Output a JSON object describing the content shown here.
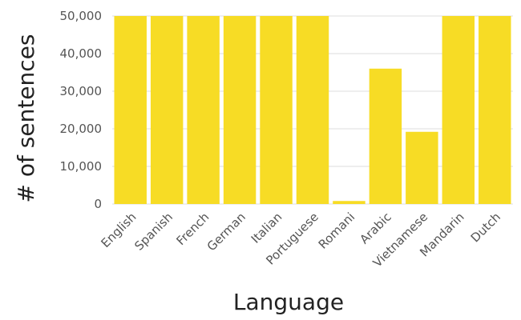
{
  "chart_data": {
    "type": "bar",
    "xlabel": "Language",
    "ylabel": "# of sentences",
    "categories": [
      "English",
      "Spanish",
      "French",
      "German",
      "Italian",
      "Portuguese",
      "Romani",
      "Arabic",
      "Vietnamese",
      "Mandarin",
      "Dutch"
    ],
    "values": [
      50000,
      50000,
      50000,
      50000,
      50000,
      50000,
      800,
      36000,
      19200,
      50000,
      50000
    ],
    "ylim": [
      0,
      50000
    ],
    "yticks": [
      0,
      10000,
      20000,
      30000,
      40000,
      50000
    ],
    "ytick_labels": [
      "0",
      "10,000",
      "20,000",
      "30,000",
      "40,000",
      "50,000"
    ],
    "grid": true,
    "colors": {
      "bar": "#f7dc25"
    }
  }
}
